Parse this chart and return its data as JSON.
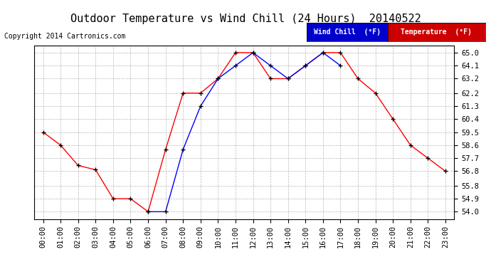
{
  "title": "Outdoor Temperature vs Wind Chill (24 Hours)  20140522",
  "copyright": "Copyright 2014 Cartronics.com",
  "x_labels": [
    "00:00",
    "01:00",
    "02:00",
    "03:00",
    "04:00",
    "05:00",
    "06:00",
    "07:00",
    "08:00",
    "09:00",
    "10:00",
    "11:00",
    "12:00",
    "13:00",
    "14:00",
    "15:00",
    "16:00",
    "17:00",
    "18:00",
    "19:00",
    "20:00",
    "21:00",
    "22:00",
    "23:00"
  ],
  "y_ticks": [
    54.0,
    54.9,
    55.8,
    56.8,
    57.7,
    58.6,
    59.5,
    60.4,
    61.3,
    62.2,
    63.2,
    64.1,
    65.0
  ],
  "ylim": [
    53.5,
    65.5
  ],
  "temperature": [
    59.5,
    58.6,
    57.2,
    56.9,
    54.9,
    54.9,
    54.0,
    58.3,
    62.2,
    62.2,
    63.2,
    65.0,
    65.0,
    63.2,
    63.2,
    64.1,
    65.0,
    65.0,
    63.2,
    62.2,
    60.4,
    58.6,
    57.7,
    56.8
  ],
  "wind_chill": [
    null,
    null,
    null,
    null,
    null,
    null,
    54.0,
    54.0,
    58.3,
    61.3,
    63.2,
    64.1,
    65.0,
    64.1,
    63.2,
    64.1,
    65.0,
    64.1,
    null,
    null,
    null,
    null,
    null,
    null
  ],
  "temp_color": "#ff0000",
  "wind_color": "#0000ff",
  "bg_color": "#ffffff",
  "plot_bg_color": "#ffffff",
  "grid_color": "#888888",
  "legend_wind_bg": "#0000cc",
  "legend_temp_bg": "#cc0000",
  "legend_text_color": "#ffffff",
  "title_fontsize": 11,
  "tick_fontsize": 7.5,
  "copyright_fontsize": 7
}
